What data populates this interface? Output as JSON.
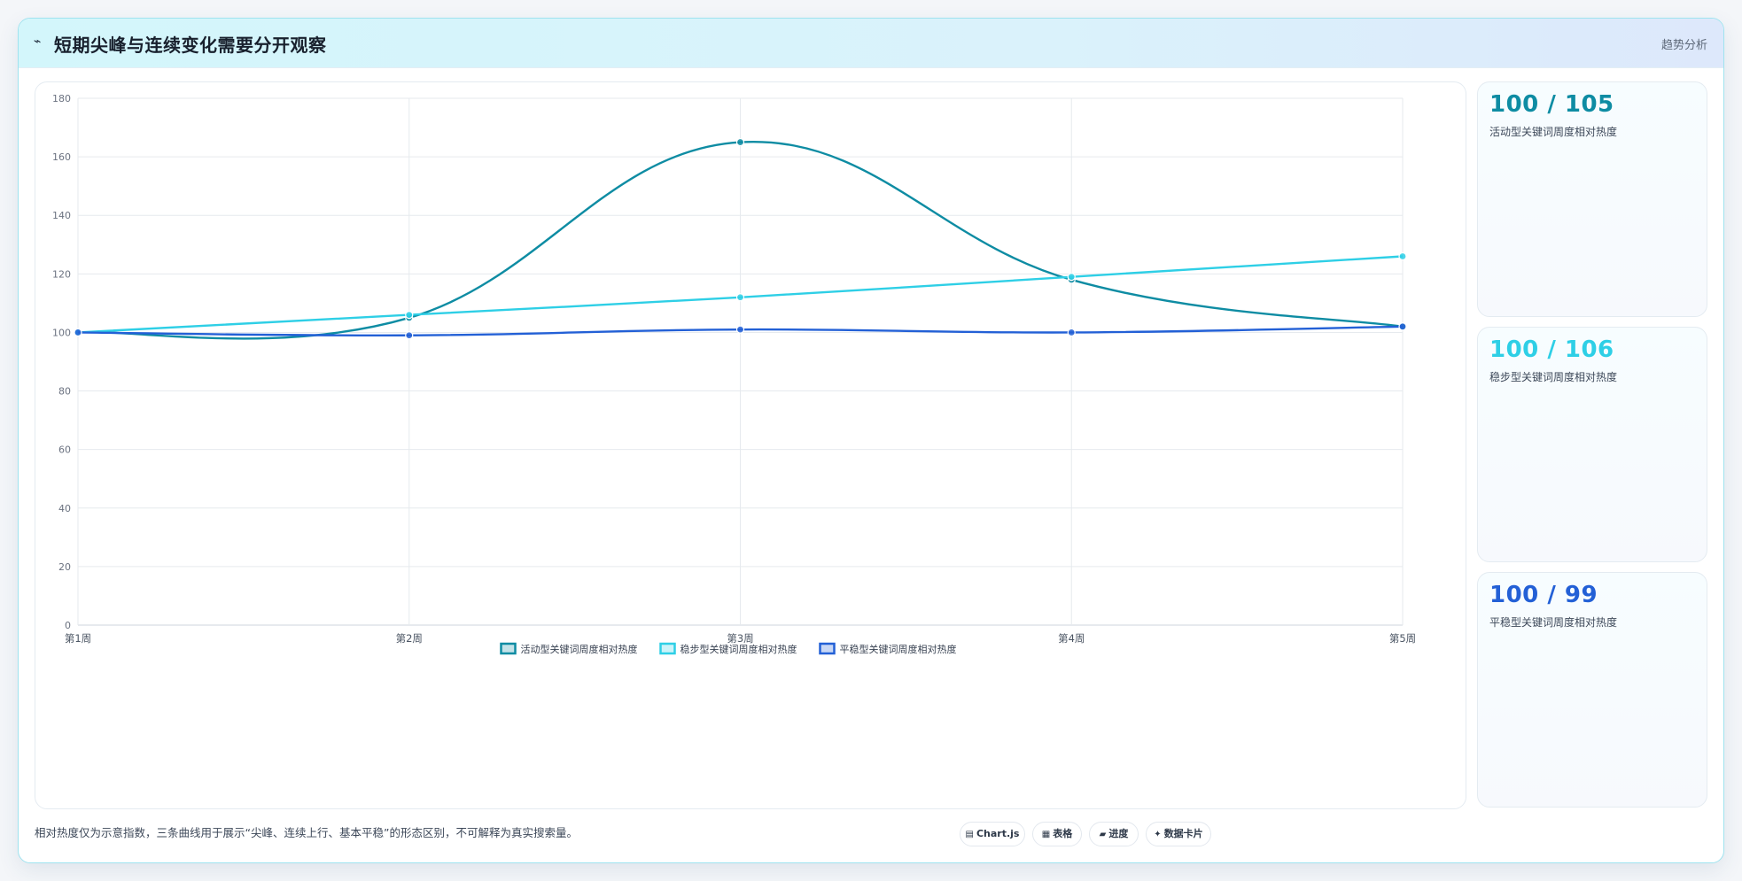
{
  "header": {
    "icon": "trend-line-icon",
    "title": "短期尖峰与连续变化需要分开观察",
    "tag": "趋势分析"
  },
  "chart_data": {
    "type": "line",
    "categories": [
      "第1周",
      "第2周",
      "第3周",
      "第4周",
      "第5周"
    ],
    "series": [
      {
        "name": "活动型关键词周度相对热度",
        "values": [
          100,
          105,
          165,
          118,
          102
        ],
        "color": "#0e8ca3"
      },
      {
        "name": "稳步型关键词周度相对热度",
        "values": [
          100,
          106,
          112,
          119,
          126
        ],
        "color": "#2ecfe6"
      },
      {
        "name": "平稳型关键词周度相对热度",
        "values": [
          100,
          99,
          101,
          100,
          102
        ],
        "color": "#2360d6"
      }
    ],
    "ylim": [
      0,
      180
    ],
    "yticks": [
      0,
      20,
      40,
      60,
      80,
      100,
      120,
      140,
      160,
      180
    ],
    "grid": true,
    "legend": "bottom",
    "xlabel": "",
    "ylabel": ""
  },
  "stats": [
    {
      "value": "100 / 105",
      "label": "活动型关键词周度相对热度",
      "color": "#0e8ca3"
    },
    {
      "value": "100 / 106",
      "label": "稳步型关键词周度相对热度",
      "color": "#2ecfe6"
    },
    {
      "value": "100 / 99",
      "label": "平稳型关键词周度相对热度",
      "color": "#2360d6"
    }
  ],
  "footnote": "相对热度仅为示意指数，三条曲线用于展示“尖峰、连续上行、基本平稳”的形态区别，不可解释为真实搜索量。",
  "tools": [
    {
      "icon": "chart-icon",
      "glyph": "▤",
      "label": "Chart.js"
    },
    {
      "icon": "table-icon",
      "glyph": "▦",
      "label": "表格"
    },
    {
      "icon": "progress-icon",
      "glyph": "▰",
      "label": "进度"
    },
    {
      "icon": "sparkle-icon",
      "glyph": "✦",
      "label": "数据卡片"
    }
  ]
}
